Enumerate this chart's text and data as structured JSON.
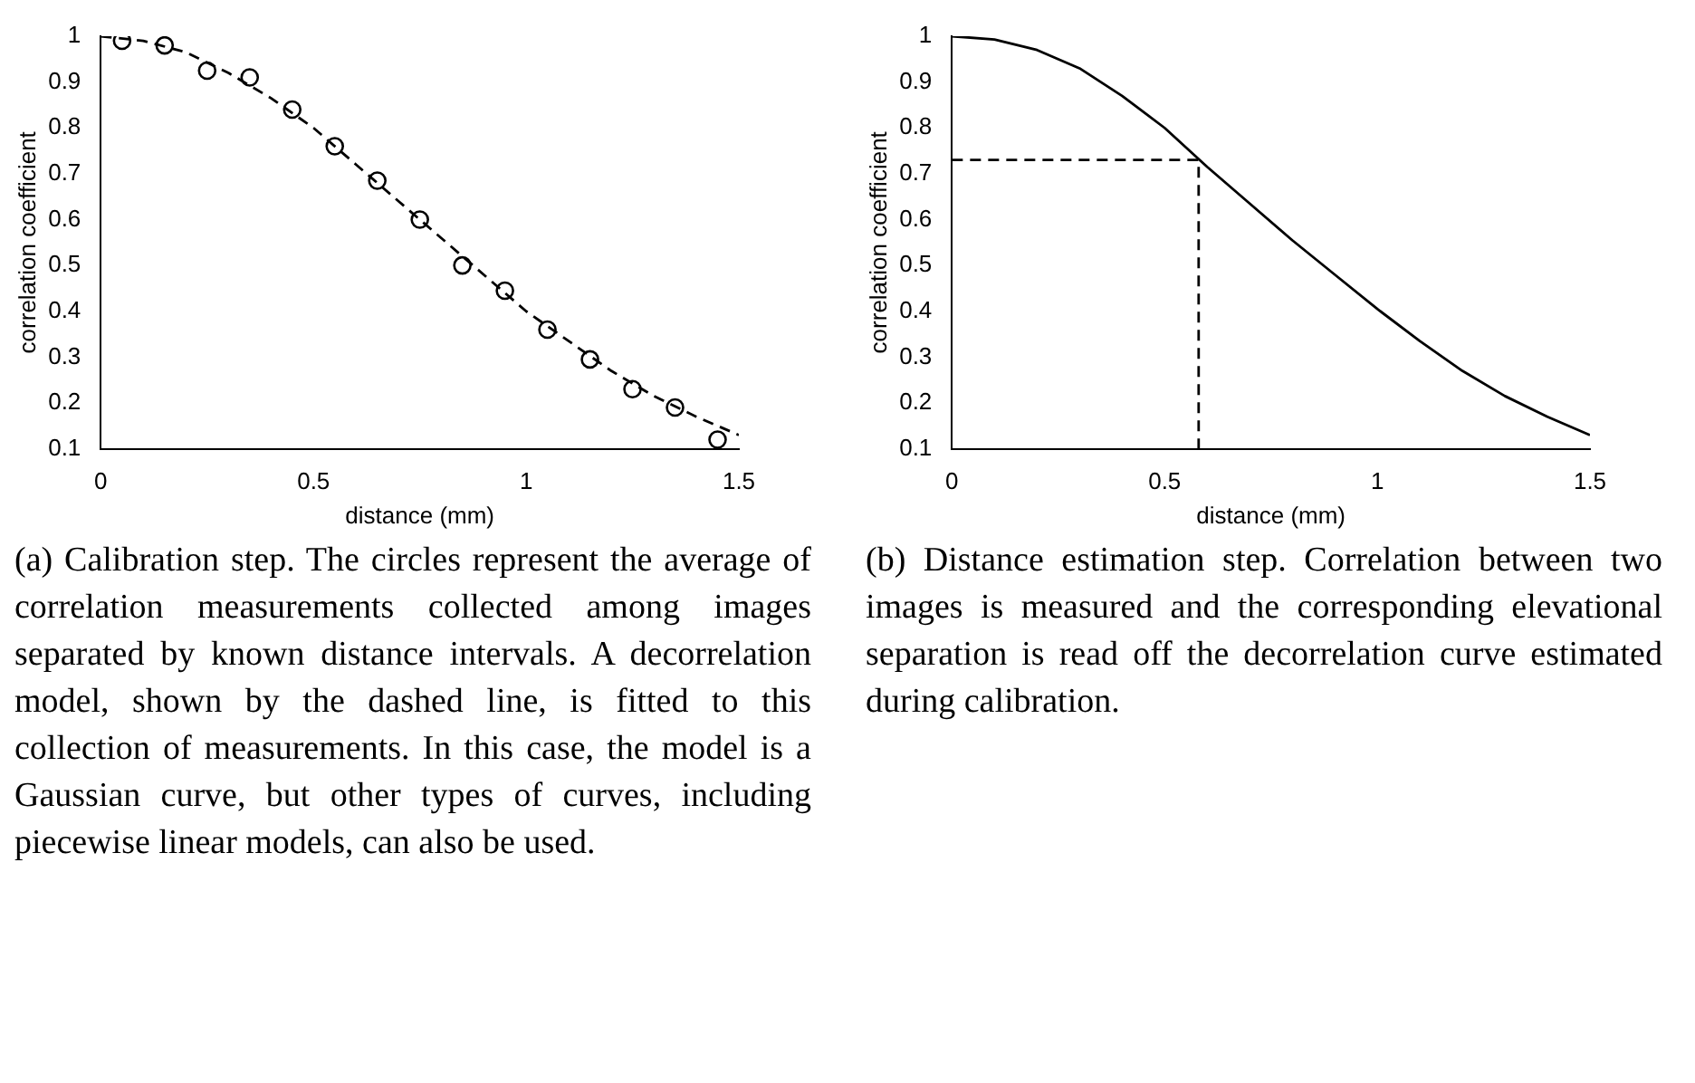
{
  "chart_data": [
    {
      "type": "scatter",
      "xlabel": "distance (mm)",
      "ylabel": "correlation coefficient",
      "xlim": [
        0,
        1.5
      ],
      "ylim": [
        0.1,
        1
      ],
      "xticks": [
        0,
        0.5,
        1,
        1.5
      ],
      "yticks": [
        0.1,
        0.2,
        0.3,
        0.4,
        0.5,
        0.6,
        0.7,
        0.8,
        0.9,
        1
      ],
      "grid": false,
      "legend": false,
      "x": [
        0.05,
        0.15,
        0.25,
        0.35,
        0.45,
        0.55,
        0.65,
        0.75,
        0.85,
        0.95,
        1.05,
        1.15,
        1.25,
        1.35,
        1.45
      ],
      "series": [
        {
          "color": "#000000",
          "marker": "circle",
          "values": [
            0.99,
            0.98,
            0.925,
            0.91,
            0.84,
            0.76,
            0.685,
            0.6,
            0.5,
            0.445,
            0.36,
            0.295,
            0.23,
            0.19,
            0.12
          ]
        },
        {
          "type": "line",
          "color": "#000000",
          "marker": "none",
          "line_style": "dashed",
          "x": [
            0,
            0.1,
            0.2,
            0.3,
            0.4,
            0.5,
            0.6,
            0.7,
            0.8,
            0.9,
            1.0,
            1.1,
            1.2,
            1.3,
            1.4,
            1.5
          ],
          "values": [
            1.0,
            0.99,
            0.965,
            0.92,
            0.865,
            0.8,
            0.72,
            0.64,
            0.56,
            0.48,
            0.4,
            0.335,
            0.27,
            0.215,
            0.17,
            0.13
          ]
        }
      ],
      "annotations": [
        "(a) Calibration step. The circles represent the average of correlation measurements collected among images separated by known distance intervals. A decorrelation model, shown by the dashed line, is fitted to this collection of measurements. In this case, the model is a Gaussian curve, but other types of curves, including piecewise linear models, can also be used."
      ]
    },
    {
      "type": "line",
      "xlabel": "distance (mm)",
      "ylabel": "correlation coefficient",
      "xlim": [
        0,
        1.5
      ],
      "ylim": [
        0.1,
        1
      ],
      "xticks": [
        0,
        0.5,
        1,
        1.5
      ],
      "yticks": [
        0.1,
        0.2,
        0.3,
        0.4,
        0.5,
        0.6,
        0.7,
        0.8,
        0.9,
        1
      ],
      "grid": false,
      "legend": false,
      "x": [
        0,
        0.1,
        0.2,
        0.3,
        0.4,
        0.5,
        0.6,
        0.7,
        0.8,
        0.9,
        1.0,
        1.1,
        1.2,
        1.3,
        1.4,
        1.5
      ],
      "series": [
        {
          "color": "#000000",
          "marker": "none",
          "line_style": "solid",
          "values": [
            1.0,
            0.993,
            0.97,
            0.93,
            0.87,
            0.8,
            0.715,
            0.635,
            0.555,
            0.48,
            0.405,
            0.335,
            0.27,
            0.215,
            0.17,
            0.13
          ]
        },
        {
          "color": "#000000",
          "marker": "none",
          "line_style": "dashed",
          "x": [
            0,
            0.58,
            0.58
          ],
          "values": [
            0.73,
            0.73,
            0.1
          ]
        }
      ],
      "annotations": [
        "(b) Distance estimation step. Correlation between two images is measured and the corresponding elevational separation is read off the decorrelation curve estimated during calibration."
      ]
    }
  ]
}
